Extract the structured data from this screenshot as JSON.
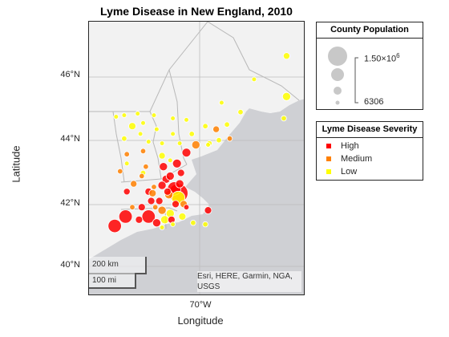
{
  "title": "Lyme Disease in New England, 2010",
  "axes": {
    "xlabel": "Longitude",
    "ylabel": "Latitude",
    "lat_ticks": [
      "46°N",
      "44°N",
      "42°N",
      "40°N"
    ],
    "lon_tick": "70°W"
  },
  "attribution": "Esri, HERE, Garmin, NGA, USGS",
  "scale_bar": {
    "km": "200 km",
    "mi": "100 mi"
  },
  "legend_population": {
    "title": "County Population",
    "max_label": "1.50×10",
    "max_exp": "6",
    "min_label": "6306"
  },
  "legend_severity": {
    "title": "Lyme Disease Severity",
    "items": [
      {
        "label": "High",
        "color": "#ff0000"
      },
      {
        "label": "Medium",
        "color": "#ff8000"
      },
      {
        "label": "Low",
        "color": "#ffff00"
      }
    ]
  },
  "colors": {
    "water": "#cfd0d4",
    "land": "#f2f2f2",
    "border": "#b8b8b8",
    "bubble_edge": "#ffffff"
  },
  "chart_data": {
    "type": "scatter",
    "xlim": [
      -74.3,
      -66.3
    ],
    "ylim": [
      39.0,
      47.8
    ],
    "points": [
      {
        "lon": -67.0,
        "lat": 46.7,
        "pop": 71870,
        "sev": "Low"
      },
      {
        "lon": -68.2,
        "lat": 45.95,
        "pop": 17535,
        "sev": "Low"
      },
      {
        "lon": -67.0,
        "lat": 45.4,
        "pop": 153923,
        "sev": "Low"
      },
      {
        "lon": -69.4,
        "lat": 45.2,
        "pop": 17535,
        "sev": "Low"
      },
      {
        "lon": -66.2,
        "lat": 44.85,
        "pop": 32856,
        "sev": "Low"
      },
      {
        "lon": -68.7,
        "lat": 44.9,
        "pop": 32856,
        "sev": "Low"
      },
      {
        "lon": -67.1,
        "lat": 44.7,
        "pop": 32856,
        "sev": "Low"
      },
      {
        "lon": -72.5,
        "lat": 44.85,
        "pop": 17535,
        "sev": "Low"
      },
      {
        "lon": -73.0,
        "lat": 44.8,
        "pop": 17535,
        "sev": "Low"
      },
      {
        "lon": -71.9,
        "lat": 44.8,
        "pop": 17535,
        "sev": "Low"
      },
      {
        "lon": -71.2,
        "lat": 44.7,
        "pop": 17535,
        "sev": "Low"
      },
      {
        "lon": -73.3,
        "lat": 44.75,
        "pop": 17535,
        "sev": "Low"
      },
      {
        "lon": -72.3,
        "lat": 44.55,
        "pop": 17535,
        "sev": "Low"
      },
      {
        "lon": -70.7,
        "lat": 44.65,
        "pop": 17535,
        "sev": "Low"
      },
      {
        "lon": -69.2,
        "lat": 44.5,
        "pop": 32856,
        "sev": "Low"
      },
      {
        "lon": -72.7,
        "lat": 44.45,
        "pop": 105678,
        "sev": "Low"
      },
      {
        "lon": -71.8,
        "lat": 44.35,
        "pop": 17535,
        "sev": "Low"
      },
      {
        "lon": -70.0,
        "lat": 44.45,
        "pop": 32856,
        "sev": "Low"
      },
      {
        "lon": -69.6,
        "lat": 44.35,
        "pop": 71870,
        "sev": "Medium"
      },
      {
        "lon": -72.4,
        "lat": 44.2,
        "pop": 17535,
        "sev": "Low"
      },
      {
        "lon": -71.2,
        "lat": 44.2,
        "pop": 17535,
        "sev": "Low"
      },
      {
        "lon": -70.5,
        "lat": 44.2,
        "pop": 32856,
        "sev": "Low"
      },
      {
        "lon": -69.1,
        "lat": 44.05,
        "pop": 32856,
        "sev": "Medium"
      },
      {
        "lon": -73.0,
        "lat": 44.05,
        "pop": 32856,
        "sev": "Low"
      },
      {
        "lon": -69.5,
        "lat": 44.0,
        "pop": 32856,
        "sev": "Low"
      },
      {
        "lon": -69.85,
        "lat": 43.9,
        "pop": 32856,
        "sev": "Low"
      },
      {
        "lon": -72.1,
        "lat": 43.95,
        "pop": 17535,
        "sev": "Low"
      },
      {
        "lon": -71.6,
        "lat": 43.9,
        "pop": 17535,
        "sev": "Low"
      },
      {
        "lon": -70.95,
        "lat": 43.9,
        "pop": 17535,
        "sev": "Low"
      },
      {
        "lon": -70.35,
        "lat": 43.85,
        "pop": 153923,
        "sev": "Medium"
      },
      {
        "lon": -69.9,
        "lat": 43.85,
        "pop": 17535,
        "sev": "Low"
      },
      {
        "lon": -70.7,
        "lat": 43.6,
        "pop": 197131,
        "sev": "High"
      },
      {
        "lon": -72.3,
        "lat": 43.65,
        "pop": 32856,
        "sev": "Medium"
      },
      {
        "lon": -72.9,
        "lat": 43.55,
        "pop": 32856,
        "sev": "Medium"
      },
      {
        "lon": -71.6,
        "lat": 43.5,
        "pop": 71870,
        "sev": "Low"
      },
      {
        "lon": -71.3,
        "lat": 43.35,
        "pop": 17535,
        "sev": "Low"
      },
      {
        "lon": -72.9,
        "lat": 43.25,
        "pop": 17535,
        "sev": "Low"
      },
      {
        "lon": -71.05,
        "lat": 43.25,
        "pop": 197131,
        "sev": "High"
      },
      {
        "lon": -71.55,
        "lat": 43.15,
        "pop": 153923,
        "sev": "High"
      },
      {
        "lon": -72.2,
        "lat": 43.15,
        "pop": 32856,
        "sev": "Medium"
      },
      {
        "lon": -70.9,
        "lat": 42.95,
        "pop": 105678,
        "sev": "High"
      },
      {
        "lon": -73.15,
        "lat": 43.0,
        "pop": 32856,
        "sev": "Medium"
      },
      {
        "lon": -72.3,
        "lat": 42.95,
        "pop": 32856,
        "sev": "Low"
      },
      {
        "lon": -71.45,
        "lat": 42.75,
        "pop": 153923,
        "sev": "High"
      },
      {
        "lon": -72.35,
        "lat": 42.85,
        "pop": 32856,
        "sev": "Medium"
      },
      {
        "lon": -71.3,
        "lat": 42.85,
        "pop": 153923,
        "sev": "High"
      },
      {
        "lon": -70.95,
        "lat": 42.6,
        "pop": 153923,
        "sev": "High"
      },
      {
        "lon": -71.6,
        "lat": 42.55,
        "pop": 153923,
        "sev": "High"
      },
      {
        "lon": -71.15,
        "lat": 42.45,
        "pop": 611000,
        "sev": "High"
      },
      {
        "lon": -71.0,
        "lat": 42.3,
        "pop": 1503085,
        "sev": "High"
      },
      {
        "lon": -71.9,
        "lat": 42.5,
        "pop": 32856,
        "sev": "Medium"
      },
      {
        "lon": -72.65,
        "lat": 42.6,
        "pop": 71870,
        "sev": "Medium"
      },
      {
        "lon": -71.4,
        "lat": 42.35,
        "pop": 105678,
        "sev": "High"
      },
      {
        "lon": -72.9,
        "lat": 42.35,
        "pop": 71870,
        "sev": "High"
      },
      {
        "lon": -72.1,
        "lat": 42.35,
        "pop": 105678,
        "sev": "High"
      },
      {
        "lon": -71.95,
        "lat": 42.3,
        "pop": 105678,
        "sev": "Medium"
      },
      {
        "lon": -71.35,
        "lat": 42.25,
        "pop": 153923,
        "sev": "Medium"
      },
      {
        "lon": -71.0,
        "lat": 42.15,
        "pop": 611000,
        "sev": "Low"
      },
      {
        "lon": -72.0,
        "lat": 42.05,
        "pop": 105678,
        "sev": "High"
      },
      {
        "lon": -71.7,
        "lat": 42.05,
        "pop": 105678,
        "sev": "High"
      },
      {
        "lon": -71.1,
        "lat": 41.95,
        "pop": 105678,
        "sev": "High"
      },
      {
        "lon": -70.8,
        "lat": 41.95,
        "pop": 105678,
        "sev": "Medium"
      },
      {
        "lon": -72.7,
        "lat": 41.85,
        "pop": 32856,
        "sev": "Medium"
      },
      {
        "lon": -72.35,
        "lat": 41.85,
        "pop": 105678,
        "sev": "High"
      },
      {
        "lon": -71.85,
        "lat": 41.85,
        "pop": 32856,
        "sev": "Medium"
      },
      {
        "lon": -70.7,
        "lat": 41.85,
        "pop": 32856,
        "sev": "High"
      },
      {
        "lon": -71.6,
        "lat": 41.75,
        "pop": 153923,
        "sev": "Medium"
      },
      {
        "lon": -71.3,
        "lat": 41.65,
        "pop": 153923,
        "sev": "Low"
      },
      {
        "lon": -69.9,
        "lat": 41.75,
        "pop": 105678,
        "sev": "High"
      },
      {
        "lon": -72.95,
        "lat": 41.55,
        "pop": 611000,
        "sev": "High"
      },
      {
        "lon": -72.1,
        "lat": 41.55,
        "pop": 611000,
        "sev": "High"
      },
      {
        "lon": -71.5,
        "lat": 41.45,
        "pop": 153923,
        "sev": "Low"
      },
      {
        "lon": -71.25,
        "lat": 41.45,
        "pop": 105678,
        "sev": "High"
      },
      {
        "lon": -70.85,
        "lat": 41.55,
        "pop": 105678,
        "sev": "Low"
      },
      {
        "lon": -72.45,
        "lat": 41.45,
        "pop": 105678,
        "sev": "High"
      },
      {
        "lon": -73.35,
        "lat": 41.25,
        "pop": 611000,
        "sev": "High"
      },
      {
        "lon": -71.8,
        "lat": 41.35,
        "pop": 153923,
        "sev": "High"
      },
      {
        "lon": -70.45,
        "lat": 41.35,
        "pop": 32856,
        "sev": "Low"
      },
      {
        "lon": -70.0,
        "lat": 41.3,
        "pop": 32856,
        "sev": "Low"
      },
      {
        "lon": -71.2,
        "lat": 41.3,
        "pop": 17535,
        "sev": "Low"
      },
      {
        "lon": -71.6,
        "lat": 41.2,
        "pop": 17535,
        "sev": "Low"
      }
    ]
  }
}
